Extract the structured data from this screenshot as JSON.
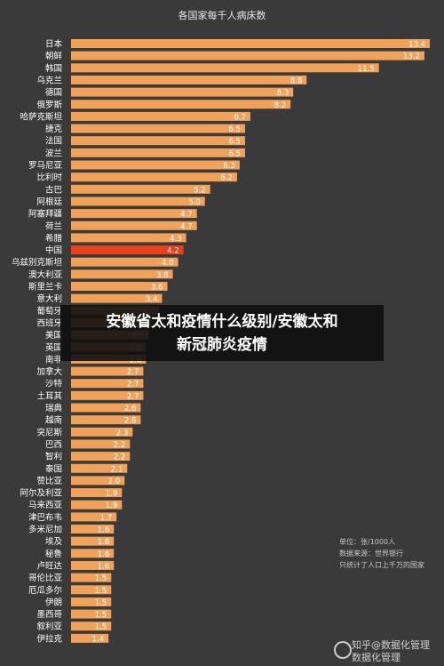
{
  "chart_data": {
    "type": "bar",
    "orientation": "horizontal",
    "title": "各国家每千人病床数",
    "categories": [
      "日本",
      "朝鲜",
      "韩国",
      "乌克兰",
      "德国",
      "俄罗斯",
      "哈萨克斯坦",
      "捷克",
      "法国",
      "波兰",
      "罗马尼亚",
      "比利时",
      "古巴",
      "阿根廷",
      "阿塞拜疆",
      "荷兰",
      "希腊",
      "中国",
      "乌兹别克斯坦",
      "澳大利亚",
      "斯里兰卡",
      "意大利",
      "葡萄牙",
      "西班牙",
      "美国",
      "英国",
      "南非",
      "加拿大",
      "沙特",
      "土耳其",
      "瑞典",
      "越南",
      "突尼斯",
      "巴西",
      "智利",
      "泰国",
      "赞比亚",
      "阿尔及利亚",
      "马来西亚",
      "津巴布韦",
      "多米尼加",
      "埃及",
      "秘鲁",
      "卢旺达",
      "哥伦比亚",
      "厄瓜多尔",
      "伊朗",
      "墨西哥",
      "叙利亚",
      "伊拉克"
    ],
    "values": [
      13.4,
      13.2,
      11.5,
      8.8,
      8.3,
      8.2,
      6.7,
      6.5,
      6.5,
      6.5,
      6.3,
      6.2,
      5.2,
      5.0,
      4.7,
      4.7,
      4.3,
      4.2,
      4.0,
      3.8,
      3.6,
      3.4,
      3.3,
      3.0,
      2.9,
      2.8,
      2.8,
      2.7,
      2.7,
      2.7,
      2.6,
      2.6,
      2.3,
      2.2,
      2.2,
      2.1,
      2.0,
      1.9,
      1.9,
      1.7,
      1.6,
      1.6,
      1.6,
      1.6,
      1.5,
      1.5,
      1.5,
      1.5,
      1.5,
      1.4
    ],
    "value_labels": [
      "13.4",
      "13.2",
      "11.5",
      "8.8",
      "8.3",
      "8.2",
      "6.7",
      "6.5",
      "6.5",
      "6.5",
      "6.3",
      "6.2",
      "5.2",
      "5.0",
      "4.7",
      "4.7",
      "4.3",
      "4.2",
      "4.0",
      "3.8",
      "3.6",
      "3.4",
      "3.3",
      "3.0",
      "2.9",
      "2.8",
      "2.8",
      "2.7",
      "2.7",
      "2.7",
      "2.6",
      "2.6",
      "2.3",
      "2.2",
      "2.2",
      "2.1",
      "2.0",
      "1.9",
      "1.9",
      "1.7",
      "1.6",
      "1.6",
      "1.6",
      "1.6",
      "1.5",
      "1.5",
      "1.5",
      "1.5",
      "1.5",
      "1.4"
    ],
    "highlight_category": "中国",
    "xlim": [
      0,
      13.4
    ],
    "grid": false,
    "colors": {
      "bar": "#f0a25a",
      "highlight": "#e8401c",
      "background": "#3a3a3a",
      "label": "#ffffff",
      "value_label": "#ffffff"
    }
  },
  "overlay": {
    "line1": "安徽省太和疫情什么级别/安徽太和",
    "line2": "新冠肺炎疫情"
  },
  "note": {
    "line1": "单位：张/1000人",
    "line2": "数据来源：世界银行",
    "line3": "只统计了人口上千万的国家"
  },
  "watermark": {
    "line1": "知乎@数据化管理",
    "line2": "数据化管理"
  }
}
